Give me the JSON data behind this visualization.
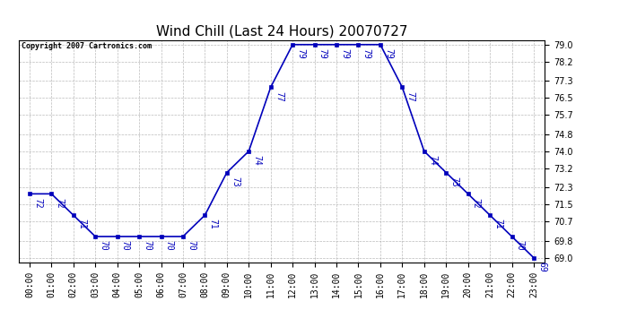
{
  "title": "Wind Chill (Last 24 Hours) 20070727",
  "copyright": "Copyright 2007 Cartronics.com",
  "hours": [
    "00:00",
    "01:00",
    "02:00",
    "03:00",
    "04:00",
    "05:00",
    "06:00",
    "07:00",
    "08:00",
    "09:00",
    "10:00",
    "11:00",
    "12:00",
    "13:00",
    "14:00",
    "15:00",
    "16:00",
    "17:00",
    "18:00",
    "19:00",
    "20:00",
    "21:00",
    "22:00",
    "23:00"
  ],
  "values": [
    72,
    72,
    71,
    70,
    70,
    70,
    70,
    70,
    71,
    73,
    74,
    77,
    79,
    79,
    79,
    79,
    79,
    77,
    74,
    73,
    72,
    71,
    70,
    69
  ],
  "line_color": "#0000bb",
  "grid_color": "#aaaaaa",
  "background_color": "#ffffff",
  "yticks": [
    69.0,
    69.8,
    70.7,
    71.5,
    72.3,
    73.2,
    74.0,
    74.8,
    75.7,
    76.5,
    77.3,
    78.2,
    79.0
  ],
  "ylim_min": 68.8,
  "ylim_max": 79.2,
  "title_fontsize": 11,
  "tick_fontsize": 7,
  "annot_fontsize": 7,
  "copyright_fontsize": 6
}
